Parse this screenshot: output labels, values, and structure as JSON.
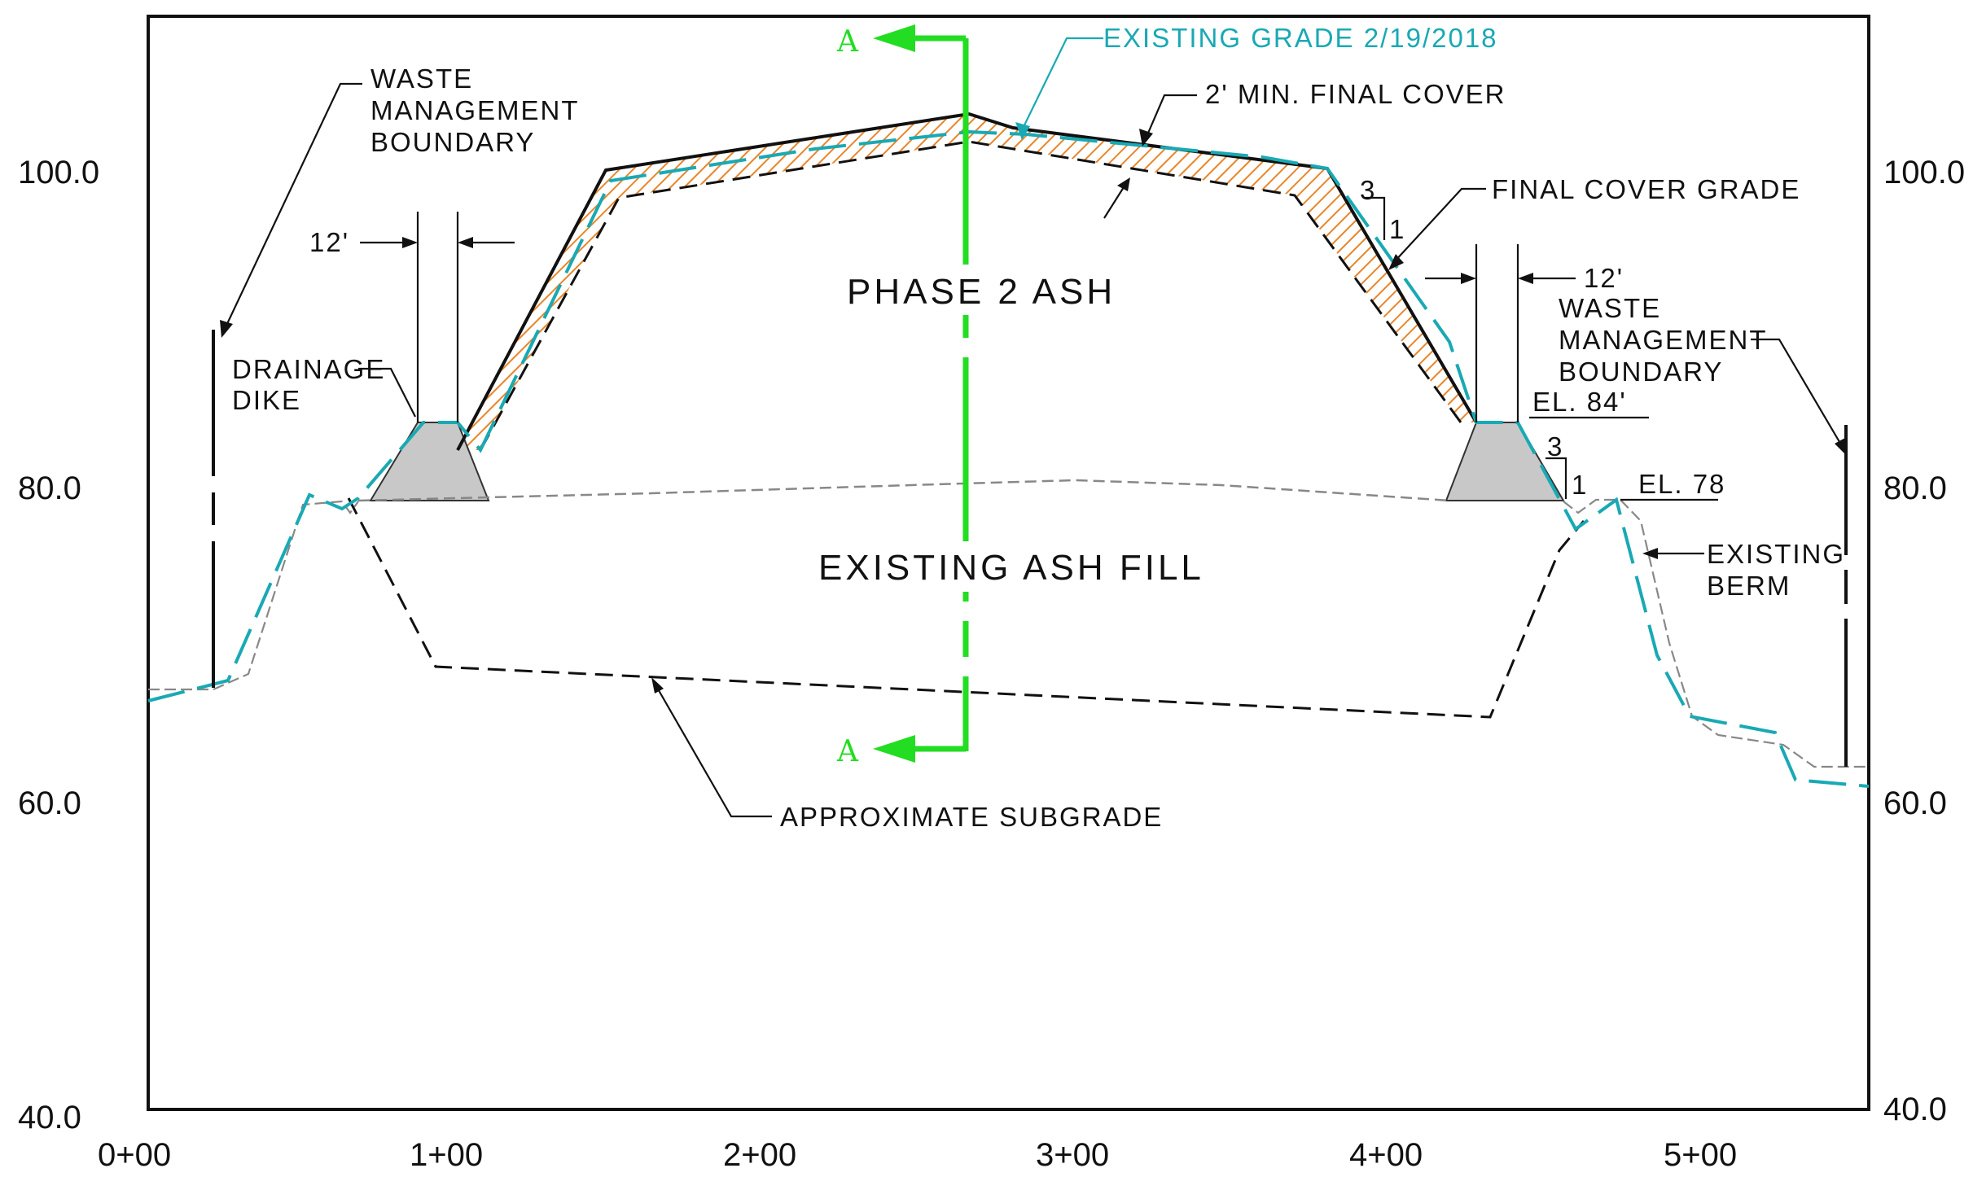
{
  "section": {
    "section_mark": "A",
    "phase_label": "PHASE 2 ASH",
    "fill_label": "EXISTING ASH FILL"
  },
  "notes": {
    "existing_grade": "EXISTING GRADE 2/19/2018",
    "min_cover": "2' MIN. FINAL COVER",
    "final_cover": "FINAL COVER GRADE",
    "wmb_left": [
      "WASTE",
      "MANAGEMENT",
      "BOUNDARY"
    ],
    "wmb_right": [
      "WASTE",
      "MANAGEMENT",
      "BOUNDARY"
    ],
    "drainage_dike": [
      "DRAINAGE",
      "DIKE"
    ],
    "offset_left": "12'",
    "offset_right": "12'",
    "el_84": "EL. 84'",
    "el_78": "EL. 78",
    "slope_rise_1": "3",
    "slope_run_1": "1",
    "slope_rise_2": "3",
    "slope_run_2": "1",
    "existing_berm": [
      "EXISTING",
      "BERM"
    ],
    "subgrade": "APPROXIMATE SUBGRADE"
  },
  "axes": {
    "y_left": [
      "100.0",
      "80.0",
      "60.0",
      "40.0"
    ],
    "y_right": [
      "100.0",
      "80.0",
      "60.0",
      "40.0"
    ],
    "x": [
      "0+00",
      "1+00",
      "2+00",
      "3+00",
      "4+00",
      "5+00"
    ]
  },
  "colors": {
    "existing_grade": "#19a9b4",
    "section_line": "#22dd22",
    "cover_hatch": "#e8862a",
    "dike_fill": "#c8c8c8"
  }
}
